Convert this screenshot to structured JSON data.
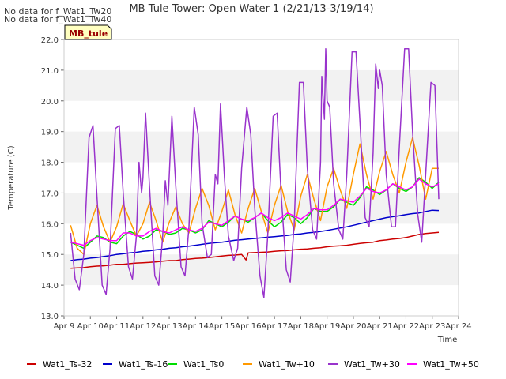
{
  "notes": [
    "No data for f_Wat1_Tw20",
    "No data for f_Wat1_Tw40"
  ],
  "badge": {
    "label": "MB_tule"
  },
  "chart_data": {
    "type": "line",
    "title": "MB Tule Tower: Open Water 1 (2/21/13-3/19/14)",
    "xlabel": "Time",
    "ylabel": "Temperature (C)",
    "xlim": [
      9,
      24
    ],
    "ylim": [
      13.0,
      22.0
    ],
    "x_ticks": [
      9,
      10,
      11,
      12,
      13,
      14,
      15,
      16,
      17,
      18,
      19,
      20,
      21,
      22,
      23,
      24
    ],
    "x_tick_labels": [
      "Apr 9",
      "Apr 10",
      "Apr 11",
      "Apr 12",
      "Apr 13",
      "Apr 14",
      "Apr 15",
      "Apr 16",
      "Apr 17",
      "Apr 18",
      "Apr 19",
      "Apr 20",
      "Apr 21",
      "Apr 22",
      "Apr 23",
      "Apr 24"
    ],
    "y_ticks": [
      13.0,
      14.0,
      15.0,
      16.0,
      17.0,
      18.0,
      19.0,
      20.0,
      21.0,
      22.0
    ],
    "y_tick_labels": [
      "13.0",
      "14.0",
      "15.0",
      "16.0",
      "17.0",
      "18.0",
      "19.0",
      "20.0",
      "21.0",
      "22.0"
    ],
    "grid": "alternating horizontal bands",
    "legend_position": "bottom",
    "series": [
      {
        "name": "Wat1_Ts-32",
        "color": "#cc0000",
        "x": [
          9.25,
          9.5,
          9.75,
          10.0,
          10.25,
          10.5,
          10.75,
          11.0,
          11.25,
          11.5,
          11.75,
          12.0,
          12.25,
          12.5,
          12.75,
          13.0,
          13.25,
          13.5,
          13.75,
          14.0,
          14.25,
          14.5,
          14.75,
          15.0,
          15.25,
          15.5,
          15.75,
          15.92,
          16.0,
          16.25,
          16.5,
          16.75,
          17.0,
          17.25,
          17.5,
          17.75,
          18.0,
          18.25,
          18.5,
          18.75,
          19.0,
          19.25,
          19.5,
          19.75,
          20.0,
          20.25,
          20.5,
          20.75,
          21.0,
          21.25,
          21.5,
          21.75,
          22.0,
          22.25,
          22.5,
          22.75,
          23.0,
          23.25
        ],
        "y": [
          14.55,
          14.56,
          14.57,
          14.6,
          14.62,
          14.63,
          14.65,
          14.68,
          14.68,
          14.7,
          14.72,
          14.73,
          14.74,
          14.76,
          14.78,
          14.8,
          14.8,
          14.83,
          14.85,
          14.87,
          14.88,
          14.9,
          14.92,
          14.95,
          14.97,
          14.98,
          15.0,
          14.82,
          15.05,
          15.06,
          15.07,
          15.08,
          15.1,
          15.12,
          15.13,
          15.15,
          15.17,
          15.18,
          15.2,
          15.22,
          15.25,
          15.27,
          15.28,
          15.3,
          15.33,
          15.36,
          15.38,
          15.4,
          15.45,
          15.47,
          15.5,
          15.52,
          15.55,
          15.6,
          15.65,
          15.68,
          15.7,
          15.72
        ]
      },
      {
        "name": "Wat1_Ts-16",
        "color": "#0000cc",
        "x": [
          9.25,
          9.5,
          9.75,
          10.0,
          10.25,
          10.5,
          10.75,
          11.0,
          11.25,
          11.5,
          11.75,
          12.0,
          12.25,
          12.5,
          12.75,
          13.0,
          13.25,
          13.5,
          13.75,
          14.0,
          14.25,
          14.5,
          14.75,
          15.0,
          15.25,
          15.5,
          15.75,
          16.0,
          16.25,
          16.5,
          16.75,
          17.0,
          17.25,
          17.5,
          17.75,
          18.0,
          18.25,
          18.5,
          18.75,
          19.0,
          19.25,
          19.5,
          19.75,
          20.0,
          20.25,
          20.5,
          20.75,
          21.0,
          21.25,
          21.5,
          21.75,
          22.0,
          22.25,
          22.5,
          22.75,
          23.0,
          23.25
        ],
        "y": [
          14.8,
          14.83,
          14.85,
          14.88,
          14.9,
          14.93,
          14.96,
          15.0,
          15.02,
          15.05,
          15.07,
          15.1,
          15.12,
          15.15,
          15.17,
          15.2,
          15.22,
          15.25,
          15.27,
          15.3,
          15.33,
          15.36,
          15.38,
          15.4,
          15.43,
          15.46,
          15.48,
          15.5,
          15.52,
          15.54,
          15.56,
          15.58,
          15.6,
          15.62,
          15.65,
          15.67,
          15.7,
          15.72,
          15.75,
          15.78,
          15.82,
          15.86,
          15.9,
          15.95,
          16.0,
          16.05,
          16.1,
          16.15,
          16.2,
          16.23,
          16.26,
          16.3,
          16.33,
          16.35,
          16.4,
          16.44,
          16.43
        ]
      },
      {
        "name": "Wat1_Ts0",
        "color": "#00dd00",
        "x": [
          9.25,
          9.5,
          9.75,
          10.0,
          10.25,
          10.5,
          10.75,
          11.0,
          11.25,
          11.5,
          11.75,
          12.0,
          12.25,
          12.5,
          12.75,
          13.0,
          13.25,
          13.5,
          13.75,
          14.0,
          14.25,
          14.5,
          14.75,
          15.0,
          15.25,
          15.5,
          15.75,
          16.0,
          16.25,
          16.5,
          16.75,
          17.0,
          17.25,
          17.5,
          17.75,
          18.0,
          18.25,
          18.5,
          18.75,
          19.0,
          19.25,
          19.5,
          19.75,
          20.0,
          20.25,
          20.5,
          20.75,
          21.0,
          21.25,
          21.5,
          21.75,
          22.0,
          22.25,
          22.5,
          22.75,
          23.0,
          23.25
        ],
        "y": [
          15.4,
          15.3,
          15.2,
          15.4,
          15.6,
          15.55,
          15.4,
          15.35,
          15.6,
          15.75,
          15.65,
          15.5,
          15.6,
          15.8,
          15.75,
          15.65,
          15.7,
          15.85,
          15.8,
          15.7,
          15.8,
          16.1,
          16.0,
          15.9,
          16.05,
          16.25,
          16.15,
          16.05,
          16.2,
          16.35,
          16.1,
          15.9,
          16.05,
          16.3,
          16.2,
          16.0,
          16.2,
          16.5,
          16.4,
          16.4,
          16.55,
          16.8,
          16.7,
          16.6,
          16.85,
          17.2,
          17.1,
          16.95,
          17.1,
          17.3,
          17.15,
          17.05,
          17.2,
          17.5,
          17.35,
          17.15,
          17.35
        ]
      },
      {
        "name": "Wat1_Tw+10",
        "color": "#ff9900",
        "x": [
          9.25,
          9.5,
          9.75,
          10.0,
          10.25,
          10.5,
          10.75,
          11.0,
          11.25,
          11.5,
          11.75,
          12.0,
          12.25,
          12.5,
          12.75,
          13.0,
          13.25,
          13.5,
          13.75,
          14.0,
          14.25,
          14.5,
          14.75,
          15.0,
          15.25,
          15.5,
          15.75,
          16.0,
          16.25,
          16.5,
          16.75,
          17.0,
          17.25,
          17.5,
          17.75,
          18.0,
          18.25,
          18.5,
          18.75,
          19.0,
          19.25,
          19.5,
          19.75,
          20.0,
          20.25,
          20.5,
          20.75,
          21.0,
          21.25,
          21.5,
          21.75,
          22.0,
          22.25,
          22.5,
          22.75,
          23.0,
          23.25
        ],
        "y": [
          15.95,
          15.2,
          15.0,
          16.0,
          16.6,
          15.9,
          15.4,
          15.9,
          16.65,
          16.1,
          15.6,
          16.0,
          16.7,
          16.1,
          15.4,
          16.05,
          16.55,
          16.0,
          15.7,
          16.5,
          17.15,
          16.6,
          15.8,
          16.4,
          17.1,
          16.3,
          15.7,
          16.5,
          17.15,
          16.4,
          15.7,
          16.6,
          17.25,
          16.4,
          15.8,
          16.9,
          17.6,
          16.8,
          16.1,
          17.2,
          17.8,
          17.1,
          16.5,
          17.6,
          18.6,
          17.6,
          16.8,
          17.7,
          18.35,
          17.6,
          17.0,
          18.0,
          18.8,
          17.9,
          16.8,
          17.8,
          17.8
        ]
      },
      {
        "name": "Wat1_Tw+30",
        "color": "#9933cc",
        "x": [
          9.25,
          9.42,
          9.58,
          9.75,
          9.95,
          10.1,
          10.25,
          10.45,
          10.6,
          10.75,
          10.95,
          11.1,
          11.25,
          11.45,
          11.6,
          11.75,
          11.85,
          11.95,
          12.0,
          12.1,
          12.25,
          12.45,
          12.6,
          12.75,
          12.85,
          12.95,
          13.1,
          13.25,
          13.45,
          13.6,
          13.75,
          13.95,
          14.1,
          14.25,
          14.45,
          14.6,
          14.75,
          14.85,
          14.95,
          15.1,
          15.25,
          15.45,
          15.6,
          15.75,
          15.95,
          16.1,
          16.25,
          16.45,
          16.6,
          16.75,
          16.95,
          17.1,
          17.25,
          17.45,
          17.6,
          17.75,
          17.95,
          18.1,
          18.25,
          18.45,
          18.6,
          18.75,
          18.8,
          18.9,
          18.95,
          19.0,
          19.1,
          19.25,
          19.45,
          19.6,
          19.75,
          19.95,
          20.1,
          20.25,
          20.45,
          20.6,
          20.75,
          20.85,
          20.95,
          21.0,
          21.1,
          21.25,
          21.45,
          21.6,
          21.75,
          21.95,
          22.1,
          22.25,
          22.45,
          22.6,
          22.75,
          22.95,
          23.1,
          23.25
        ],
        "y": [
          15.7,
          14.2,
          13.85,
          15.0,
          18.8,
          19.2,
          16.9,
          14.0,
          13.7,
          15.2,
          19.1,
          19.2,
          17.0,
          14.6,
          14.2,
          15.6,
          18.0,
          17.0,
          17.5,
          19.6,
          17.2,
          14.3,
          14.0,
          15.6,
          17.4,
          16.6,
          19.5,
          17.2,
          14.6,
          14.3,
          15.9,
          19.8,
          18.9,
          16.0,
          14.9,
          15.0,
          17.6,
          17.3,
          19.9,
          17.5,
          15.6,
          14.8,
          15.2,
          17.8,
          19.8,
          18.9,
          16.5,
          14.3,
          13.6,
          15.7,
          19.5,
          19.6,
          17.0,
          14.5,
          14.1,
          16.0,
          20.6,
          20.6,
          17.8,
          15.8,
          15.5,
          18.0,
          20.8,
          19.4,
          21.7,
          20.0,
          19.8,
          17.3,
          15.8,
          15.5,
          17.6,
          21.6,
          21.6,
          19.3,
          16.2,
          15.9,
          18.3,
          21.2,
          20.4,
          21.0,
          20.5,
          17.6,
          15.9,
          15.9,
          18.5,
          21.7,
          21.7,
          19.0,
          16.3,
          15.4,
          17.6,
          20.6,
          20.5,
          16.8
        ]
      },
      {
        "name": "Wat1_Tw+50",
        "color": "#ff00ff",
        "x": [
          9.25,
          9.5,
          9.75,
          10.0,
          10.25,
          10.5,
          10.75,
          11.0,
          11.25,
          11.5,
          11.75,
          12.0,
          12.25,
          12.5,
          12.75,
          13.0,
          13.25,
          13.5,
          13.75,
          14.0,
          14.25,
          14.5,
          14.75,
          15.0,
          15.25,
          15.5,
          15.75,
          16.0,
          16.25,
          16.5,
          16.75,
          17.0,
          17.25,
          17.5,
          17.75,
          18.0,
          18.25,
          18.5,
          18.75,
          19.0,
          19.25,
          19.5,
          19.75,
          20.0,
          20.25,
          20.5,
          20.75,
          21.0,
          21.25,
          21.5,
          21.75,
          22.0,
          22.25,
          22.5,
          22.75,
          23.0,
          23.25
        ],
        "y": [
          15.4,
          15.35,
          15.3,
          15.45,
          15.55,
          15.5,
          15.45,
          15.45,
          15.7,
          15.7,
          15.6,
          15.6,
          15.75,
          15.85,
          15.75,
          15.7,
          15.8,
          15.9,
          15.8,
          15.75,
          15.85,
          16.05,
          16.0,
          15.95,
          16.1,
          16.25,
          16.15,
          16.1,
          16.2,
          16.35,
          16.2,
          16.1,
          16.2,
          16.35,
          16.25,
          16.15,
          16.3,
          16.5,
          16.45,
          16.45,
          16.6,
          16.8,
          16.75,
          16.7,
          16.9,
          17.15,
          17.05,
          17.0,
          17.1,
          17.3,
          17.2,
          17.1,
          17.2,
          17.45,
          17.3,
          17.2,
          17.3
        ]
      }
    ]
  }
}
